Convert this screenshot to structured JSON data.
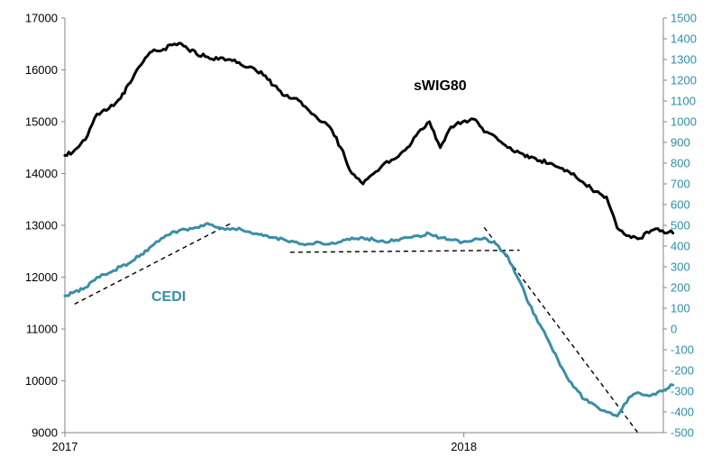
{
  "chart_data": {
    "type": "line",
    "title": "",
    "x_axis": {
      "start": "2017-01",
      "end": "2018-07",
      "tick_labels": [
        {
          "date": "2017-01",
          "label": "2017"
        },
        {
          "date": "2018-01",
          "label": "2018"
        }
      ]
    },
    "y_left": {
      "min": 9000,
      "max": 17000,
      "step": 1000,
      "tick_labels": [
        "9000",
        "10000",
        "11000",
        "12000",
        "13000",
        "14000",
        "15000",
        "16000",
        "17000"
      ]
    },
    "y_right": {
      "min": -500,
      "max": 1500,
      "step": 100,
      "tick_labels": [
        "-500",
        "-400",
        "-300",
        "-200",
        "-100",
        "0",
        "100",
        "200",
        "300",
        "400",
        "500",
        "600",
        "700",
        "800",
        "900",
        "1000",
        "1100",
        "1200",
        "1300",
        "1400",
        "1500"
      ]
    },
    "series": [
      {
        "name": "sWIG80",
        "label": "sWIG80",
        "axis": "left",
        "color": "#000000",
        "points": [
          [
            "2017-01-01",
            14350
          ],
          [
            "2017-01-10",
            14450
          ],
          [
            "2017-01-20",
            14650
          ],
          [
            "2017-01-31",
            15150
          ],
          [
            "2017-02-10",
            15250
          ],
          [
            "2017-02-20",
            15450
          ],
          [
            "2017-02-28",
            15750
          ],
          [
            "2017-03-10",
            16100
          ],
          [
            "2017-03-20",
            16350
          ],
          [
            "2017-03-31",
            16400
          ],
          [
            "2017-04-10",
            16500
          ],
          [
            "2017-04-20",
            16450
          ],
          [
            "2017-04-30",
            16300
          ],
          [
            "2017-05-10",
            16250
          ],
          [
            "2017-05-20",
            16200
          ],
          [
            "2017-05-31",
            16200
          ],
          [
            "2017-06-10",
            16100
          ],
          [
            "2017-06-20",
            16050
          ],
          [
            "2017-06-30",
            15900
          ],
          [
            "2017-07-10",
            15700
          ],
          [
            "2017-07-20",
            15500
          ],
          [
            "2017-07-31",
            15450
          ],
          [
            "2017-08-10",
            15250
          ],
          [
            "2017-08-20",
            15050
          ],
          [
            "2017-08-31",
            14900
          ],
          [
            "2017-09-10",
            14500
          ],
          [
            "2017-09-20",
            14000
          ],
          [
            "2017-09-30",
            13800
          ],
          [
            "2017-10-10",
            14000
          ],
          [
            "2017-10-20",
            14200
          ],
          [
            "2017-10-31",
            14300
          ],
          [
            "2017-11-10",
            14500
          ],
          [
            "2017-11-20",
            14800
          ],
          [
            "2017-11-30",
            15000
          ],
          [
            "2017-12-10",
            14500
          ],
          [
            "2017-12-20",
            14900
          ],
          [
            "2017-12-31",
            15000
          ],
          [
            "2018-01-10",
            15050
          ],
          [
            "2018-01-20",
            14800
          ],
          [
            "2018-01-31",
            14700
          ],
          [
            "2018-02-10",
            14500
          ],
          [
            "2018-02-20",
            14400
          ],
          [
            "2018-02-28",
            14300
          ],
          [
            "2018-03-10",
            14250
          ],
          [
            "2018-03-20",
            14200
          ],
          [
            "2018-03-31",
            14100
          ],
          [
            "2018-04-10",
            14000
          ],
          [
            "2018-04-20",
            13800
          ],
          [
            "2018-04-30",
            13650
          ],
          [
            "2018-05-10",
            13550
          ],
          [
            "2018-05-20",
            12950
          ],
          [
            "2018-05-31",
            12800
          ],
          [
            "2018-06-10",
            12750
          ],
          [
            "2018-06-20",
            12900
          ],
          [
            "2018-06-30",
            12900
          ],
          [
            "2018-07-10",
            12850
          ]
        ]
      },
      {
        "name": "CEDI",
        "label": "CEDI",
        "axis": "right",
        "color": "#3a8ea6",
        "points": [
          [
            "2017-01-01",
            160
          ],
          [
            "2017-01-10",
            180
          ],
          [
            "2017-01-20",
            200
          ],
          [
            "2017-01-31",
            250
          ],
          [
            "2017-02-10",
            270
          ],
          [
            "2017-02-20",
            300
          ],
          [
            "2017-02-28",
            320
          ],
          [
            "2017-03-10",
            360
          ],
          [
            "2017-03-20",
            400
          ],
          [
            "2017-03-31",
            440
          ],
          [
            "2017-04-10",
            470
          ],
          [
            "2017-04-20",
            480
          ],
          [
            "2017-04-30",
            490
          ],
          [
            "2017-05-10",
            510
          ],
          [
            "2017-05-20",
            490
          ],
          [
            "2017-05-31",
            480
          ],
          [
            "2017-06-10",
            480
          ],
          [
            "2017-06-20",
            460
          ],
          [
            "2017-06-30",
            450
          ],
          [
            "2017-07-10",
            440
          ],
          [
            "2017-07-20",
            430
          ],
          [
            "2017-07-31",
            420
          ],
          [
            "2017-08-10",
            410
          ],
          [
            "2017-08-20",
            420
          ],
          [
            "2017-08-31",
            410
          ],
          [
            "2017-09-10",
            420
          ],
          [
            "2017-09-20",
            440
          ],
          [
            "2017-09-30",
            440
          ],
          [
            "2017-10-10",
            430
          ],
          [
            "2017-10-20",
            420
          ],
          [
            "2017-10-31",
            430
          ],
          [
            "2017-11-10",
            440
          ],
          [
            "2017-11-20",
            450
          ],
          [
            "2017-11-30",
            460
          ],
          [
            "2017-12-10",
            440
          ],
          [
            "2017-12-20",
            430
          ],
          [
            "2017-12-31",
            420
          ],
          [
            "2018-01-10",
            430
          ],
          [
            "2018-01-20",
            440
          ],
          [
            "2018-01-31",
            410
          ],
          [
            "2018-02-10",
            350
          ],
          [
            "2018-02-20",
            230
          ],
          [
            "2018-02-28",
            120
          ],
          [
            "2018-03-10",
            20
          ],
          [
            "2018-03-20",
            -80
          ],
          [
            "2018-03-31",
            -190
          ],
          [
            "2018-04-10",
            -280
          ],
          [
            "2018-04-20",
            -340
          ],
          [
            "2018-04-30",
            -370
          ],
          [
            "2018-05-10",
            -400
          ],
          [
            "2018-05-20",
            -420
          ],
          [
            "2018-05-31",
            -330
          ],
          [
            "2018-06-10",
            -310
          ],
          [
            "2018-06-20",
            -320
          ],
          [
            "2018-06-30",
            -300
          ],
          [
            "2018-07-10",
            -270
          ]
        ]
      }
    ],
    "trend_lines": [
      {
        "axis": "right",
        "from": [
          "2017-01-10",
          120
        ],
        "to": [
          "2017-06-01",
          510
        ]
      },
      {
        "axis": "right",
        "from": [
          "2017-07-25",
          370
        ],
        "to": [
          "2018-02-20",
          380
        ]
      },
      {
        "axis": "right",
        "from": [
          "2018-01-20",
          490
        ],
        "to": [
          "2018-06-08",
          -500
        ]
      }
    ],
    "annotations": [
      {
        "text": "sWIG80",
        "series": "sWIG80"
      },
      {
        "text": "CEDI",
        "series": "CEDI"
      }
    ],
    "grid": false,
    "legend": "none"
  }
}
